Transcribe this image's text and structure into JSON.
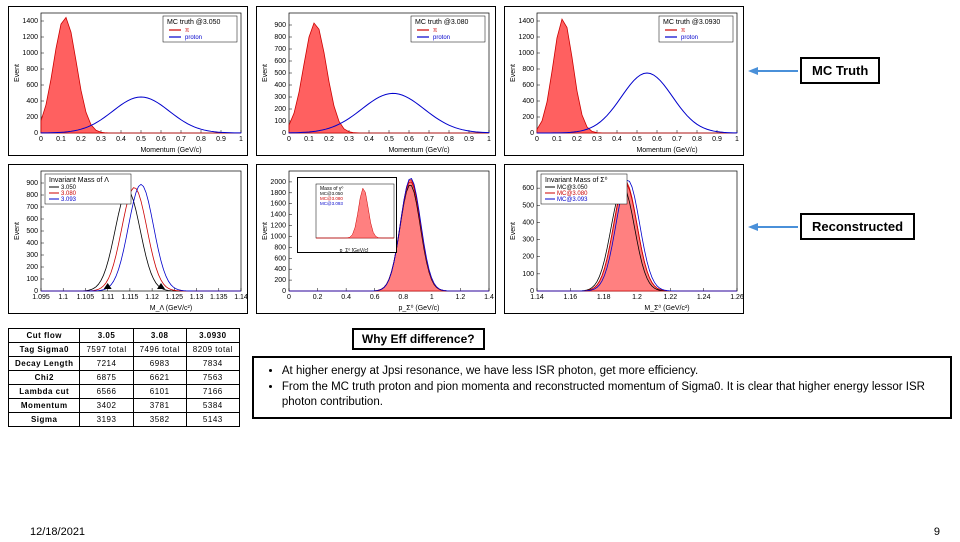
{
  "labels": {
    "mc_truth": "MC Truth",
    "reconstructed": "Reconstructed",
    "why_eff": "Why Eff difference?"
  },
  "top_charts": [
    {
      "title": "MC truth @3.050",
      "legend": [
        "π",
        "proton"
      ],
      "legend_colors": [
        "#cc0000",
        "#0000cc"
      ],
      "xlabel": "Momentum (GeV/c)",
      "ylabel": "Event",
      "xlim": [
        0.0,
        1.0
      ],
      "xticks": [
        0.0,
        0.1,
        0.2,
        0.3,
        0.4,
        0.5,
        0.6,
        0.7,
        0.8,
        0.9,
        1.0
      ],
      "ylim": [
        0,
        1500
      ],
      "yticks": [
        0,
        200,
        400,
        600,
        800,
        1000,
        1200,
        1400
      ],
      "pion_peak_x": 0.12,
      "pion_peak_y": 1450,
      "pion_width": 0.08,
      "proton_peak_x": 0.5,
      "proton_peak_y": 450,
      "proton_width": 0.2
    },
    {
      "title": "MC truth @3.080",
      "legend": [
        "π",
        "proton"
      ],
      "legend_colors": [
        "#cc0000",
        "#0000cc"
      ],
      "xlabel": "Momentum (GeV/c)",
      "ylabel": "Event",
      "xlim": [
        0.0,
        1.0
      ],
      "xticks": [
        0.0,
        0.1,
        0.2,
        0.3,
        0.4,
        0.5,
        0.6,
        0.7,
        0.8,
        0.9,
        1.0
      ],
      "ylim": [
        0,
        1000
      ],
      "yticks": [
        0,
        100,
        200,
        300,
        400,
        500,
        600,
        700,
        800,
        900
      ],
      "pion_peak_x": 0.13,
      "pion_peak_y": 920,
      "pion_width": 0.08,
      "proton_peak_x": 0.52,
      "proton_peak_y": 330,
      "proton_width": 0.22
    },
    {
      "title": "MC truth @3.0930",
      "legend": [
        "π",
        "proton"
      ],
      "legend_colors": [
        "#cc0000",
        "#0000cc"
      ],
      "xlabel": "Momentum (GeV/c)",
      "ylabel": "Event",
      "xlim": [
        0.0,
        1.0
      ],
      "xticks": [
        0.0,
        0.1,
        0.2,
        0.3,
        0.4,
        0.5,
        0.6,
        0.7,
        0.8,
        0.9,
        1.0
      ],
      "ylim": [
        0,
        1500
      ],
      "yticks": [
        0,
        200,
        400,
        600,
        800,
        1000,
        1200,
        1400
      ],
      "pion_peak_x": 0.13,
      "pion_peak_y": 1430,
      "pion_width": 0.07,
      "proton_peak_x": 0.55,
      "proton_peak_y": 750,
      "proton_width": 0.18
    }
  ],
  "bottom_charts": [
    {
      "title": "Invariant Mass of Λ",
      "legend": [
        "3.050",
        "3.080",
        "3.093"
      ],
      "legend_colors": [
        "#000",
        "#cc0000",
        "#0000cc"
      ],
      "xlabel": "M_Λ (GeV/c²)",
      "ylabel": "Event",
      "xlim": [
        1.095,
        1.14
      ],
      "xticks": [
        1.095,
        1.1,
        1.105,
        1.11,
        1.115,
        1.12,
        1.125,
        1.13,
        1.135,
        1.14
      ],
      "ylim": [
        0,
        1000
      ],
      "yticks": [
        0,
        100,
        200,
        300,
        400,
        500,
        600,
        700,
        800,
        900
      ],
      "peak_x": 1.116,
      "peak_y": 880,
      "width": 0.004
    },
    {
      "title": "",
      "xlabel": "p_Σ⁰ (GeV/c)",
      "ylabel": "Event",
      "xlim": [
        0,
        1.4
      ],
      "xticks": [
        0,
        0.2,
        0.4,
        0.6,
        0.8,
        1.0,
        1.2,
        1.4
      ],
      "ylim": [
        0,
        2200
      ],
      "yticks": [
        0,
        200,
        400,
        600,
        800,
        1000,
        1200,
        1400,
        1600,
        1800,
        2000
      ],
      "peak_x": 0.85,
      "peak_y": 2050,
      "width": 0.1,
      "fill_color": "#ff8080",
      "inset": {
        "title": "Mass of γ⁰",
        "legend": [
          "MC@3.050",
          "MC@3.080",
          "MC@3.093"
        ],
        "xlabel": "p_Σ⁰ [GeV/c]",
        "xlim": [
          0,
          1.4
        ],
        "ylim": [
          0,
          1400
        ]
      }
    },
    {
      "title": "Invariant Mass of Σ⁰",
      "legend": [
        "MC@3.050",
        "MC@3.080",
        "MC@3.093"
      ],
      "legend_colors": [
        "#000",
        "#cc0000",
        "#0000cc"
      ],
      "xlabel": "M_Σ⁰ (GeV/c²)",
      "ylabel": "Event",
      "xlim": [
        1.14,
        1.26
      ],
      "xticks": [
        1.14,
        1.16,
        1.18,
        1.2,
        1.22,
        1.24,
        1.26
      ],
      "ylim": [
        0,
        700
      ],
      "yticks": [
        0,
        100,
        200,
        300,
        400,
        500,
        600
      ],
      "peak_x": 1.193,
      "peak_y": 640,
      "width": 0.01,
      "fill_color": "#ff8080"
    }
  ],
  "table": {
    "headers": [
      "Cut flow",
      "3.05",
      "3.08",
      "3.0930"
    ],
    "rows": [
      [
        "Tag Sigma0",
        "7597 total",
        "7496 total",
        "8209 total"
      ],
      [
        "Decay Length",
        "7214",
        "6983",
        "7834"
      ],
      [
        "Chi2",
        "6875",
        "6621",
        "7563"
      ],
      [
        "Lambda cut",
        "6566",
        "6101",
        "7166"
      ],
      [
        "Momentum",
        "3402",
        "3781",
        "5384"
      ],
      [
        "Sigma",
        "3193",
        "3582",
        "5143"
      ]
    ]
  },
  "bullets": [
    "At higher energy at Jpsi resonance, we have less ISR photon, get more efficiency.",
    "From the MC truth proton and pion momenta and reconstructed momentum of Sigma0. It is clear that higher energy lessor ISR photon contribution."
  ],
  "footer_date": "12/18/2021",
  "page_number": "9",
  "colors": {
    "pion_fill": "#ff6060",
    "proton_line": "#0000cc",
    "axis": "#000000"
  }
}
